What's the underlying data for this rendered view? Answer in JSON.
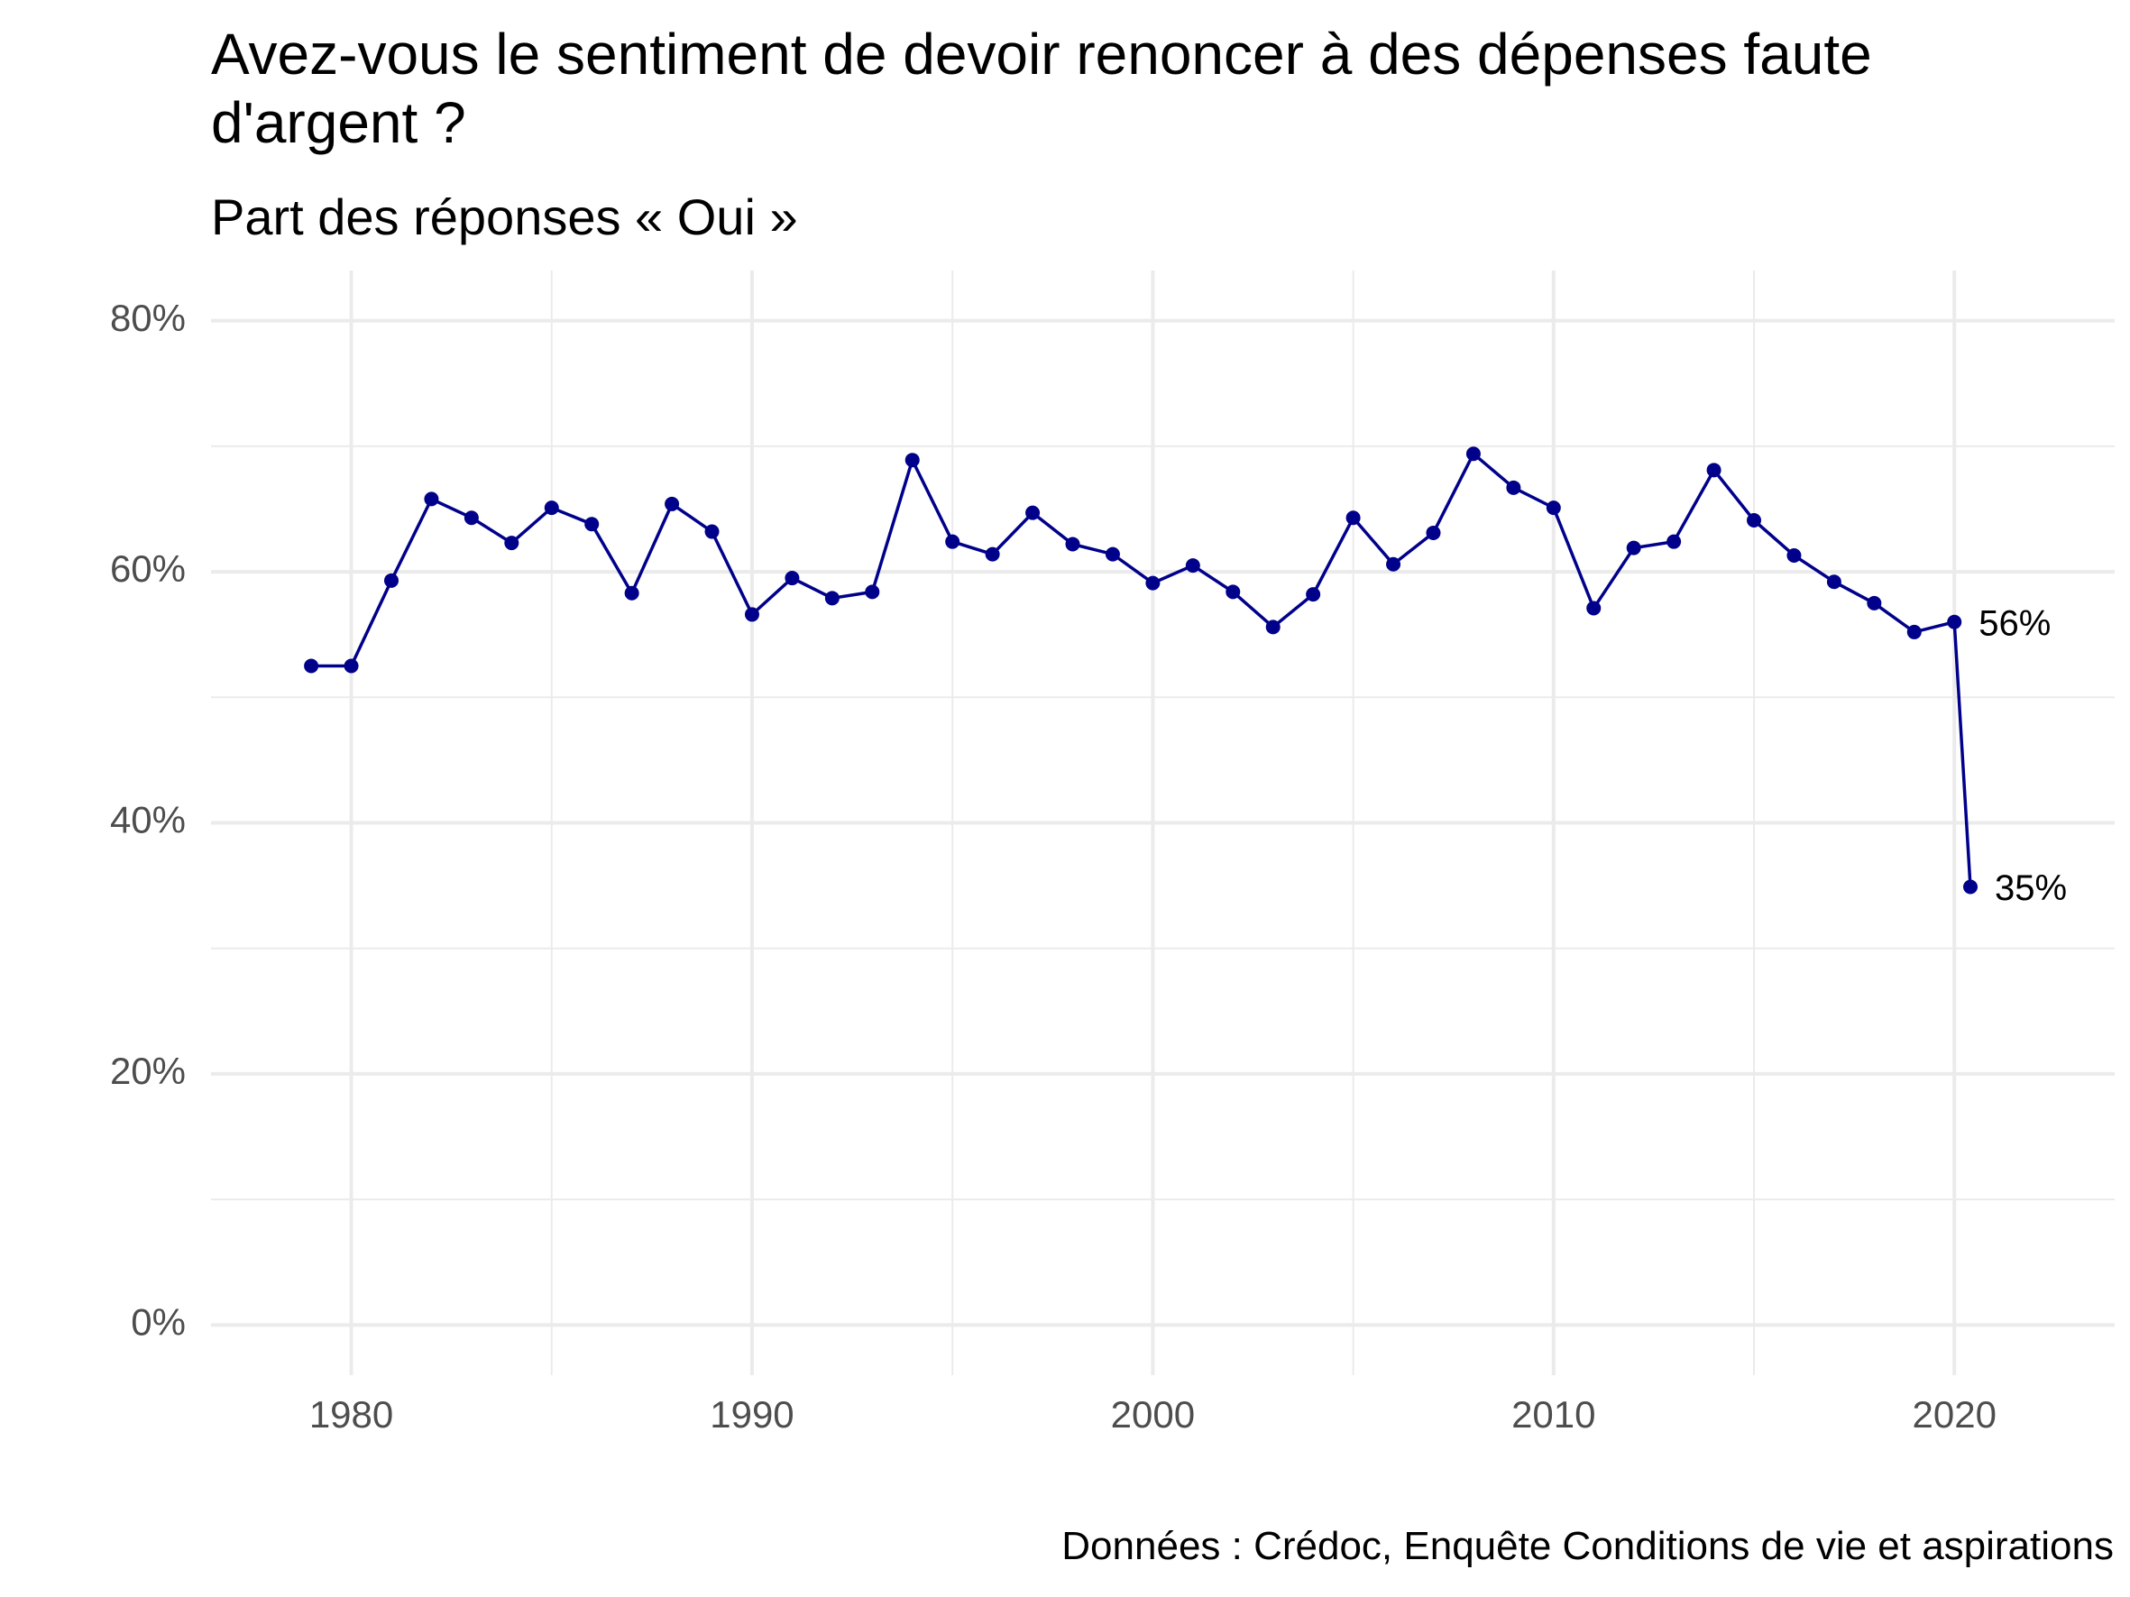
{
  "chart_data": {
    "type": "line",
    "title": "Avez-vous le sentiment de devoir renoncer à des dépenses faute d'argent ?",
    "subtitle": "Part des réponses « Oui »",
    "caption": "Données : Crédoc, Enquête Conditions de vie et aspirations",
    "xlabel": "",
    "ylabel": "",
    "xlim": [
      1976.5,
      2024
    ],
    "ylim": [
      -0.04,
      0.84
    ],
    "x_ticks": [
      1980,
      1990,
      2000,
      2010,
      2020
    ],
    "y_ticks": [
      0,
      0.2,
      0.4,
      0.6,
      0.8
    ],
    "y_tick_labels": [
      "0%",
      "20%",
      "40%",
      "60%",
      "80%"
    ],
    "grid": true,
    "line_color": "#00008B",
    "series": [
      {
        "x": [
          1979,
          1980,
          1981,
          1982,
          1983,
          1984,
          1985,
          1986,
          1987,
          1988,
          1989,
          1990,
          1991,
          1992,
          1993,
          1994,
          1995,
          1996,
          1997,
          1998,
          1999,
          2000,
          2001,
          2002,
          2003,
          2004,
          2005,
          2006,
          2007,
          2008,
          2009,
          2010,
          2011,
          2012,
          2013,
          2014,
          2015,
          2016,
          2017,
          2018,
          2019,
          2020,
          2020.4
        ],
        "y": [
          0.525,
          0.525,
          0.593,
          0.658,
          0.643,
          0.623,
          0.651,
          0.638,
          0.583,
          0.654,
          0.632,
          0.566,
          0.595,
          0.579,
          0.584,
          0.689,
          0.624,
          0.614,
          0.647,
          0.622,
          0.614,
          0.591,
          0.605,
          0.584,
          0.556,
          0.582,
          0.643,
          0.606,
          0.631,
          0.694,
          0.667,
          0.651,
          0.571,
          0.619,
          0.624,
          0.681,
          0.641,
          0.613,
          0.592,
          0.575,
          0.552,
          0.56,
          0.349
        ]
      }
    ],
    "point_labels": [
      {
        "index": 41,
        "text": "56%"
      },
      {
        "index": 42,
        "text": "35%"
      }
    ]
  }
}
